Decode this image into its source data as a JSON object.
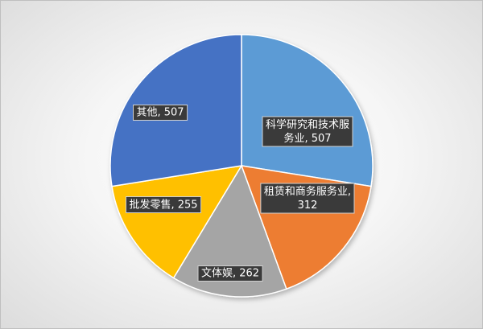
{
  "chart_data": {
    "type": "pie",
    "title": "",
    "slices": [
      {
        "label": "科学研究和技术服务业",
        "value": 507,
        "color": "#5b9bd5",
        "display": [
          "科学研究和技术服",
          "务业, 507"
        ]
      },
      {
        "label": "租赁和商务服务业",
        "value": 312,
        "color": "#ed7d31",
        "display": [
          "租赁和商务服务业,",
          "312"
        ]
      },
      {
        "label": "文体娱",
        "value": 262,
        "color": "#a5a5a5",
        "display": [
          "文体娱, 262"
        ]
      },
      {
        "label": "批发零售",
        "value": 255,
        "color": "#ffc000",
        "display": [
          "批发零售, 255"
        ]
      },
      {
        "label": "其他",
        "value": 507,
        "color": "#4472c4",
        "display": [
          "其他, 507"
        ]
      }
    ],
    "start_angle": "12 o'clock",
    "direction": "clockwise",
    "legend": "none",
    "data_labels": "inside, category name and value"
  }
}
